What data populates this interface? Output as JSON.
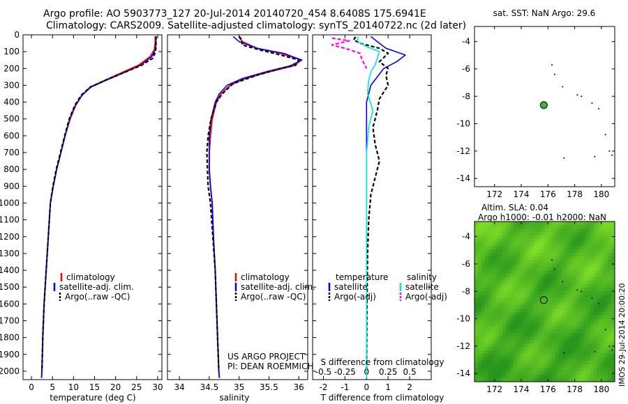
{
  "header": {
    "line1": "Argo profile: AO 5903773_127 20-Jul-2014 20140720_454 8.6408S 175.6941E",
    "line2": "Climatology: CARS2009. Satellite-adjusted climatology: synTS_20140722.nc (2d later)"
  },
  "colors": {
    "clim": "#ff0000",
    "sat": "#0000ff",
    "argo": "#000000",
    "sal_sat": "#00e5e5",
    "sal_argo": "#ff00ff",
    "map_green": "#66cc22",
    "float_marker": "#33bb33"
  },
  "chart_data": [
    {
      "id": "temperature",
      "type": "line",
      "xlabel": "temperature (deg C)",
      "ylabel": "",
      "xlim": [
        -2,
        31
      ],
      "ylim": [
        2050,
        0
      ],
      "xticks": [
        0,
        5,
        10,
        15,
        20,
        25,
        30
      ],
      "yticks": [
        0,
        100,
        200,
        300,
        400,
        500,
        600,
        700,
        800,
        900,
        1000,
        1100,
        1200,
        1300,
        1400,
        1500,
        1600,
        1700,
        1800,
        1900,
        2000
      ],
      "legend": [
        "climatology",
        "satellite-adj. clim.",
        "Argo(..raw -QC)"
      ],
      "series": [
        {
          "name": "climatology",
          "style": "clim",
          "points": [
            [
              29.4,
              10
            ],
            [
              29.4,
              50
            ],
            [
              29.2,
              90
            ],
            [
              28.2,
              130
            ],
            [
              25.5,
              180
            ],
            [
              21.5,
              225
            ],
            [
              17.5,
              270
            ],
            [
              14.0,
              310
            ],
            [
              12.0,
              360
            ],
            [
              10.5,
              420
            ],
            [
              9.2,
              500
            ],
            [
              8.0,
              600
            ],
            [
              7.0,
              700
            ],
            [
              6.0,
              800
            ],
            [
              5.2,
              900
            ],
            [
              4.5,
              1000
            ],
            [
              4.0,
              1200
            ],
            [
              3.5,
              1400
            ],
            [
              3.0,
              1600
            ],
            [
              2.7,
              1800
            ],
            [
              2.5,
              2000
            ],
            [
              2.4,
              2040
            ]
          ]
        },
        {
          "name": "satellite-adj. clim.",
          "style": "sat",
          "points": [
            [
              29.6,
              10
            ],
            [
              29.6,
              50
            ],
            [
              29.4,
              90
            ],
            [
              28.6,
              130
            ],
            [
              26.0,
              180
            ],
            [
              22.0,
              225
            ],
            [
              17.8,
              270
            ],
            [
              14.2,
              310
            ],
            [
              12.0,
              360
            ],
            [
              10.4,
              420
            ],
            [
              9.1,
              500
            ],
            [
              8.0,
              600
            ],
            [
              7.0,
              700
            ],
            [
              6.0,
              800
            ],
            [
              5.2,
              900
            ],
            [
              4.5,
              1000
            ],
            [
              4.0,
              1200
            ],
            [
              3.5,
              1400
            ],
            [
              3.0,
              1600
            ],
            [
              2.7,
              1800
            ],
            [
              2.5,
              2000
            ],
            [
              2.4,
              2040
            ]
          ]
        },
        {
          "name": "Argo(..raw -QC)",
          "style": "argo",
          "points": [
            [
              29.6,
              8
            ],
            [
              29.6,
              60
            ],
            [
              29.5,
              100
            ],
            [
              28.8,
              140
            ],
            [
              26.2,
              180
            ],
            [
              22.0,
              225
            ],
            [
              17.6,
              270
            ],
            [
              14.0,
              310
            ],
            [
              11.8,
              360
            ],
            [
              10.3,
              420
            ],
            [
              9.0,
              500
            ],
            [
              7.9,
              600
            ],
            [
              6.9,
              700
            ],
            [
              5.9,
              800
            ],
            [
              5.1,
              900
            ],
            [
              4.5,
              1000
            ],
            [
              4.0,
              1200
            ],
            [
              3.5,
              1400
            ],
            [
              3.0,
              1600
            ],
            [
              2.7,
              1800
            ],
            [
              2.5,
              2000
            ]
          ]
        }
      ]
    },
    {
      "id": "salinity",
      "type": "line",
      "xlabel": "salinity",
      "ylabel": "",
      "xlim": [
        33.8,
        36.15
      ],
      "ylim": [
        2050,
        0
      ],
      "xticks": [
        34,
        34.5,
        35,
        35.5,
        36
      ],
      "legend": [
        "climatology",
        "satellite-adj. clim.",
        "Argo(..raw -QC)"
      ],
      "annotation": [
        "US ARGO PROJECT",
        "PI: DEAN ROEMMICH"
      ],
      "series": [
        {
          "name": "climatology",
          "style": "clim",
          "points": [
            [
              35.0,
              10
            ],
            [
              35.05,
              40
            ],
            [
              35.3,
              80
            ],
            [
              35.7,
              110
            ],
            [
              36.05,
              150
            ],
            [
              35.9,
              185
            ],
            [
              35.5,
              220
            ],
            [
              35.1,
              260
            ],
            [
              34.85,
              300
            ],
            [
              34.7,
              350
            ],
            [
              34.62,
              400
            ],
            [
              34.55,
              500
            ],
            [
              34.52,
              600
            ],
            [
              34.5,
              700
            ],
            [
              34.5,
              800
            ],
            [
              34.52,
              900
            ],
            [
              34.55,
              1000
            ],
            [
              34.57,
              1200
            ],
            [
              34.6,
              1400
            ],
            [
              34.62,
              1600
            ],
            [
              34.64,
              1800
            ],
            [
              34.66,
              2000
            ],
            [
              34.67,
              2040
            ]
          ]
        },
        {
          "name": "satellite-adj. clim.",
          "style": "sat",
          "points": [
            [
              34.9,
              10
            ],
            [
              35.0,
              40
            ],
            [
              35.3,
              80
            ],
            [
              35.75,
              110
            ],
            [
              36.05,
              150
            ],
            [
              35.85,
              185
            ],
            [
              35.45,
              220
            ],
            [
              35.05,
              260
            ],
            [
              34.8,
              300
            ],
            [
              34.67,
              350
            ],
            [
              34.6,
              400
            ],
            [
              34.53,
              500
            ],
            [
              34.5,
              600
            ],
            [
              34.5,
              700
            ],
            [
              34.5,
              800
            ],
            [
              34.52,
              900
            ],
            [
              34.55,
              1000
            ],
            [
              34.57,
              1200
            ],
            [
              34.6,
              1400
            ],
            [
              34.62,
              1600
            ],
            [
              34.64,
              1800
            ],
            [
              34.66,
              2000
            ],
            [
              34.67,
              2040
            ]
          ]
        },
        {
          "name": "Argo(..raw -QC)",
          "style": "argo",
          "points": [
            [
              35.0,
              10
            ],
            [
              35.05,
              30
            ],
            [
              35.05,
              60
            ],
            [
              35.35,
              90
            ],
            [
              35.7,
              120
            ],
            [
              36.0,
              150
            ],
            [
              35.95,
              180
            ],
            [
              35.7,
              200
            ],
            [
              35.3,
              240
            ],
            [
              34.9,
              290
            ],
            [
              34.72,
              350
            ],
            [
              34.62,
              400
            ],
            [
              34.53,
              500
            ],
            [
              34.48,
              600
            ],
            [
              34.46,
              700
            ],
            [
              34.47,
              800
            ],
            [
              34.48,
              900
            ],
            [
              34.52,
              1000
            ],
            [
              34.56,
              1200
            ],
            [
              34.6,
              1400
            ],
            [
              34.62,
              1600
            ],
            [
              34.64,
              1800
            ],
            [
              34.66,
              2000
            ]
          ]
        }
      ]
    },
    {
      "id": "differences",
      "type": "line",
      "xlabel": "T difference from climatology",
      "top_axis_label": "S difference from climatology",
      "xlim": [
        -2.5,
        3
      ],
      "ylim": [
        2050,
        0
      ],
      "xticks": [
        -2,
        -1,
        0,
        1,
        2
      ],
      "top_xticks": [
        "-0.5",
        "-0.25",
        "0",
        "0.25",
        "0.5"
      ],
      "top_xtick_T_positions": [
        -2,
        -1,
        0,
        1,
        2
      ],
      "legend_titles": [
        "temperature",
        "salinity"
      ],
      "legend": [
        "satellite",
        "Argo(-adj)",
        "satellite",
        "Argo(-adj)"
      ],
      "series": [
        {
          "name": "temperature satellite",
          "style": "sat",
          "points": [
            [
              0.2,
              10
            ],
            [
              0.5,
              40
            ],
            [
              0.9,
              80
            ],
            [
              1.8,
              120
            ],
            [
              1.4,
              160
            ],
            [
              0.8,
              200
            ],
            [
              0.5,
              250
            ],
            [
              0.2,
              300
            ],
            [
              0,
              400
            ],
            [
              0,
              600
            ],
            [
              0,
              1000
            ],
            [
              0,
              1500
            ],
            [
              0,
              2040
            ]
          ]
        },
        {
          "name": "temperature Argo(-adj)",
          "style": "argo",
          "points": [
            [
              -0.5,
              12
            ],
            [
              -0.6,
              30
            ],
            [
              -0.3,
              50
            ],
            [
              0.6,
              80
            ],
            [
              1.0,
              110
            ],
            [
              0.6,
              160
            ],
            [
              1.0,
              200
            ],
            [
              0.9,
              240
            ],
            [
              1.0,
              300
            ],
            [
              0.6,
              380
            ],
            [
              0.5,
              450
            ],
            [
              0.3,
              550
            ],
            [
              0.4,
              650
            ],
            [
              0.6,
              750
            ],
            [
              0.4,
              850
            ],
            [
              0.2,
              950
            ],
            [
              0.1,
              1100
            ],
            [
              0.05,
              1300
            ],
            [
              0.02,
              1600
            ],
            [
              0,
              2000
            ]
          ]
        },
        {
          "name": "salinity satellite",
          "style": "sal_sat",
          "points": [
            [
              -0.4,
              10
            ],
            [
              -0.4,
              40
            ],
            [
              0,
              70
            ],
            [
              0.6,
              100
            ],
            [
              0.5,
              140
            ],
            [
              0.4,
              180
            ],
            [
              0.2,
              220
            ],
            [
              0.1,
              270
            ],
            [
              0.05,
              350
            ],
            [
              0.3,
              450
            ],
            [
              0.1,
              550
            ],
            [
              0,
              700
            ],
            [
              0,
              1000
            ],
            [
              0,
              2040
            ]
          ]
        },
        {
          "name": "salinity Argo(-adj)",
          "style": "sal_argo",
          "points": [
            [
              -1.6,
              20
            ],
            [
              -0.8,
              35
            ],
            [
              -1.6,
              60
            ],
            [
              -1.0,
              80
            ],
            [
              -0.3,
              110
            ],
            [
              -0.2,
              150
            ],
            [
              0,
              200
            ]
          ]
        }
      ]
    },
    {
      "id": "sst-map",
      "type": "scatter",
      "title": "sat. SST: NaN Argo: 29.6",
      "xlim": [
        170.5,
        181
      ],
      "ylim": [
        -14.6,
        -2.9
      ],
      "xticks": [
        172,
        174,
        176,
        178,
        180
      ],
      "yticks": [
        -4,
        -6,
        -8,
        -10,
        -12,
        -14
      ],
      "float": {
        "lon": 175.69,
        "lat": -8.64
      },
      "islands": [
        [
          176.3,
          -5.7
        ],
        [
          176.5,
          -6.4
        ],
        [
          177.1,
          -7.3
        ],
        [
          178.2,
          -7.9
        ],
        [
          178.5,
          -8.0
        ],
        [
          179.3,
          -8.5
        ],
        [
          179.8,
          -8.9
        ],
        [
          180.3,
          -10.8
        ],
        [
          179.5,
          -12.4
        ],
        [
          180.6,
          -12.0
        ],
        [
          180.8,
          -12.3
        ],
        [
          177.2,
          -12.5
        ]
      ]
    },
    {
      "id": "sla-map",
      "type": "heatmap",
      "title_lines": [
        "Altim. SLA: 0.04",
        "Argo h1000: -0.01 h2000: NaN"
      ],
      "xlim": [
        170.5,
        181
      ],
      "ylim": [
        -14.6,
        -2.9
      ],
      "xticks": [
        172,
        174,
        176,
        178,
        180
      ],
      "yticks": [
        -4,
        -6,
        -8,
        -10,
        -12,
        -14
      ],
      "float": {
        "lon": 175.69,
        "lat": -8.64
      },
      "islands": [
        [
          176.3,
          -5.7
        ],
        [
          176.5,
          -6.4
        ],
        [
          177.1,
          -7.3
        ],
        [
          178.2,
          -7.9
        ],
        [
          178.5,
          -8.0
        ],
        [
          179.3,
          -8.5
        ],
        [
          179.8,
          -8.9
        ],
        [
          180.3,
          -10.8
        ],
        [
          179.5,
          -12.4
        ],
        [
          180.6,
          -12.0
        ],
        [
          180.8,
          -12.3
        ],
        [
          177.2,
          -12.5
        ]
      ]
    }
  ],
  "watermark": "IMOS 29-Jul-2014 20:00:20"
}
